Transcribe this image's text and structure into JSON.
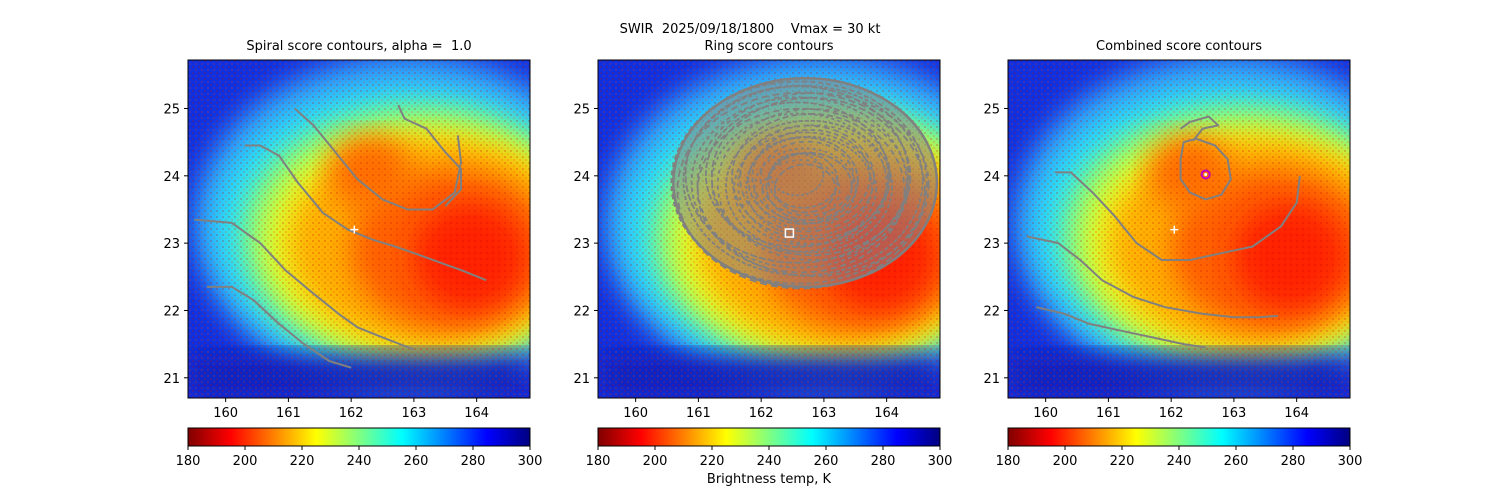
{
  "figure": {
    "suptitle": "SWIR  2025/09/18/1800    Vmax = 30 kt",
    "colorbar_label": "Brightness temp, K"
  },
  "colors": {
    "contour": "#808080",
    "marker_white": "#ffffff",
    "marker_magenta": "#c000c0",
    "colormap": [
      "#800000",
      "#ff0000",
      "#ff8000",
      "#ffff00",
      "#80ff80",
      "#00ffff",
      "#0080ff",
      "#0000ff",
      "#000080"
    ]
  },
  "chart_data": [
    {
      "type": "heatmap",
      "title": "Spiral score contours, alpha =  1.0",
      "xlim": [
        159.4,
        164.85
      ],
      "ylim": [
        20.7,
        25.72
      ],
      "xticks": [
        160,
        161,
        162,
        163,
        164
      ],
      "yticks": [
        21,
        22,
        23,
        24,
        25
      ],
      "colorbar": {
        "range": [
          180,
          300
        ],
        "ticks": [
          180,
          200,
          220,
          240,
          260,
          280,
          300
        ],
        "reversed": true,
        "label": ""
      },
      "markers": [
        {
          "kind": "plus",
          "x": 162.05,
          "y": 23.2,
          "color": "#ffffff"
        }
      ],
      "contours": [
        [
          [
            161.1,
            25.0
          ],
          [
            161.4,
            24.75
          ],
          [
            161.75,
            24.35
          ],
          [
            162.1,
            23.95
          ],
          [
            162.5,
            23.65
          ],
          [
            162.9,
            23.5
          ],
          [
            163.3,
            23.5
          ],
          [
            163.65,
            23.75
          ],
          [
            163.75,
            24.2
          ],
          [
            163.7,
            24.6
          ]
        ],
        [
          [
            162.75,
            25.05
          ],
          [
            162.85,
            24.85
          ],
          [
            163.2,
            24.7
          ],
          [
            163.5,
            24.35
          ],
          [
            163.75,
            24.1
          ],
          [
            163.75,
            23.8
          ],
          [
            163.5,
            23.55
          ]
        ],
        [
          [
            160.3,
            24.45
          ],
          [
            160.55,
            24.45
          ],
          [
            160.85,
            24.3
          ],
          [
            161.15,
            23.9
          ],
          [
            161.55,
            23.45
          ],
          [
            161.95,
            23.2
          ],
          [
            162.35,
            23.05
          ],
          [
            162.7,
            22.95
          ],
          [
            163.1,
            22.82
          ],
          [
            163.45,
            22.7
          ],
          [
            163.75,
            22.6
          ],
          [
            164.15,
            22.45
          ]
        ],
        [
          [
            159.5,
            23.35
          ],
          [
            160.1,
            23.3
          ],
          [
            160.55,
            23.0
          ],
          [
            160.95,
            22.6
          ],
          [
            161.4,
            22.25
          ],
          [
            161.8,
            21.95
          ],
          [
            162.1,
            21.75
          ],
          [
            162.5,
            21.6
          ],
          [
            163.0,
            21.42
          ]
        ],
        [
          [
            159.7,
            22.35
          ],
          [
            160.1,
            22.35
          ],
          [
            160.45,
            22.15
          ],
          [
            160.85,
            21.8
          ],
          [
            161.25,
            21.5
          ],
          [
            161.65,
            21.25
          ],
          [
            162.0,
            21.15
          ]
        ]
      ]
    },
    {
      "type": "heatmap",
      "title": "Ring score contours",
      "xlim": [
        159.4,
        164.85
      ],
      "ylim": [
        20.7,
        25.72
      ],
      "xticks": [
        160,
        161,
        162,
        163,
        164
      ],
      "yticks": [
        21,
        22,
        23,
        24,
        25
      ],
      "colorbar": {
        "range": [
          180,
          300
        ],
        "ticks": [
          180,
          200,
          220,
          240,
          260,
          280,
          300
        ],
        "reversed": true,
        "label": "Brightness temp, K"
      },
      "markers": [
        {
          "kind": "square",
          "x": 162.45,
          "y": 23.15,
          "color": "#ffffff"
        }
      ],
      "ring_region": {
        "center": [
          162.7,
          23.9
        ],
        "radius_x_deg": 2.1,
        "radius_y_deg": 1.55
      }
    },
    {
      "type": "heatmap",
      "title": "Combined score contours",
      "xlim": [
        159.4,
        164.85
      ],
      "ylim": [
        20.7,
        25.72
      ],
      "xticks": [
        160,
        161,
        162,
        163,
        164
      ],
      "yticks": [
        21,
        22,
        23,
        24,
        25
      ],
      "colorbar": {
        "range": [
          180,
          300
        ],
        "ticks": [
          180,
          200,
          220,
          240,
          260,
          280,
          300
        ],
        "reversed": true,
        "label": ""
      },
      "markers": [
        {
          "kind": "plus",
          "x": 162.05,
          "y": 23.2,
          "color": "#ffffff"
        },
        {
          "kind": "circle",
          "x": 162.55,
          "y": 24.02,
          "color": "#c000c0"
        }
      ],
      "contours": [
        [
          [
            162.4,
            24.55
          ],
          [
            162.2,
            24.5
          ],
          [
            162.15,
            24.25
          ],
          [
            162.15,
            23.95
          ],
          [
            162.3,
            23.75
          ],
          [
            162.55,
            23.65
          ],
          [
            162.8,
            23.72
          ],
          [
            162.95,
            23.95
          ],
          [
            162.9,
            24.25
          ],
          [
            162.7,
            24.45
          ],
          [
            162.4,
            24.55
          ]
        ],
        [
          [
            162.35,
            24.52
          ],
          [
            162.5,
            24.7
          ],
          [
            162.75,
            24.75
          ],
          [
            162.6,
            24.88
          ],
          [
            162.3,
            24.8
          ],
          [
            162.15,
            24.7
          ]
        ],
        [
          [
            160.15,
            24.05
          ],
          [
            160.4,
            24.05
          ],
          [
            160.75,
            23.75
          ],
          [
            161.1,
            23.4
          ],
          [
            161.45,
            23.0
          ],
          [
            161.85,
            22.75
          ],
          [
            162.3,
            22.75
          ],
          [
            162.8,
            22.85
          ],
          [
            163.3,
            22.95
          ],
          [
            163.75,
            23.25
          ],
          [
            164.0,
            23.6
          ],
          [
            164.05,
            24.0
          ]
        ],
        [
          [
            159.7,
            23.1
          ],
          [
            160.2,
            23.0
          ],
          [
            160.55,
            22.75
          ],
          [
            160.9,
            22.45
          ],
          [
            161.4,
            22.2
          ],
          [
            161.9,
            22.05
          ],
          [
            162.5,
            21.95
          ],
          [
            163.0,
            21.9
          ],
          [
            163.4,
            21.9
          ],
          [
            163.7,
            21.92
          ]
        ],
        [
          [
            159.85,
            22.05
          ],
          [
            160.3,
            21.95
          ],
          [
            160.7,
            21.8
          ],
          [
            161.2,
            21.7
          ],
          [
            161.7,
            21.6
          ],
          [
            162.2,
            21.5
          ],
          [
            162.55,
            21.45
          ]
        ]
      ]
    }
  ]
}
